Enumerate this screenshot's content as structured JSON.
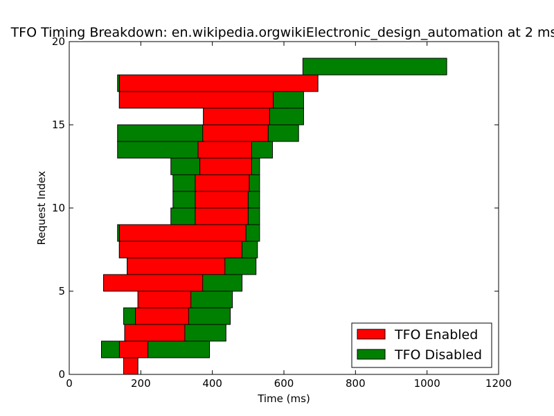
{
  "chart_data": {
    "type": "bar",
    "orientation": "horizontal",
    "layout": "overlapping",
    "title": "TFO Timing Breakdown: en.wikipedia.orgwikiElectronic_design_automation at 2 ms",
    "xlabel": "Time (ms)",
    "ylabel": "Request Index",
    "xlim": [
      0,
      1200
    ],
    "ylim": [
      0,
      20
    ],
    "xticks": [
      0,
      200,
      400,
      600,
      800,
      1000,
      1200
    ],
    "yticks": [
      0,
      5,
      10,
      15,
      20
    ],
    "grid": false,
    "legend_position": "lower-right",
    "series": [
      {
        "name": "TFO Disabled",
        "color": "#008000",
        "bars": [
          {
            "index": 1,
            "start": 90,
            "end": 392
          },
          {
            "index": 2,
            "start": 155,
            "end": 438
          },
          {
            "index": 3,
            "start": 152,
            "end": 450
          },
          {
            "index": 4,
            "start": 192,
            "end": 456
          },
          {
            "index": 5,
            "start": 96,
            "end": 483
          },
          {
            "index": 6,
            "start": 162,
            "end": 522
          },
          {
            "index": 7,
            "start": 140,
            "end": 526
          },
          {
            "index": 8,
            "start": 135,
            "end": 532
          },
          {
            "index": 9,
            "start": 284,
            "end": 532
          },
          {
            "index": 10,
            "start": 290,
            "end": 532
          },
          {
            "index": 11,
            "start": 290,
            "end": 532
          },
          {
            "index": 12,
            "start": 284,
            "end": 532
          },
          {
            "index": 13,
            "start": 135,
            "end": 568
          },
          {
            "index": 14,
            "start": 135,
            "end": 641
          },
          {
            "index": 15,
            "start": 375,
            "end": 655
          },
          {
            "index": 16,
            "start": 140,
            "end": 655
          },
          {
            "index": 17,
            "start": 135,
            "end": 695
          },
          {
            "index": 18,
            "start": 653,
            "end": 1055
          }
        ]
      },
      {
        "name": "TFO Enabled",
        "color": "#ff0000",
        "bars": [
          {
            "index": 0,
            "start": 152,
            "end": 192
          },
          {
            "index": 1,
            "start": 140,
            "end": 220
          },
          {
            "index": 2,
            "start": 155,
            "end": 323
          },
          {
            "index": 3,
            "start": 185,
            "end": 334
          },
          {
            "index": 4,
            "start": 192,
            "end": 340
          },
          {
            "index": 5,
            "start": 96,
            "end": 373
          },
          {
            "index": 6,
            "start": 162,
            "end": 435
          },
          {
            "index": 7,
            "start": 140,
            "end": 483
          },
          {
            "index": 8,
            "start": 140,
            "end": 494
          },
          {
            "index": 9,
            "start": 352,
            "end": 500
          },
          {
            "index": 10,
            "start": 352,
            "end": 500
          },
          {
            "index": 11,
            "start": 352,
            "end": 503
          },
          {
            "index": 12,
            "start": 365,
            "end": 510
          },
          {
            "index": 13,
            "start": 360,
            "end": 510
          },
          {
            "index": 14,
            "start": 373,
            "end": 556
          },
          {
            "index": 15,
            "start": 375,
            "end": 560
          },
          {
            "index": 16,
            "start": 140,
            "end": 570
          },
          {
            "index": 17,
            "start": 140,
            "end": 695
          }
        ]
      }
    ],
    "legend": [
      {
        "label": "TFO Enabled",
        "color": "#ff0000"
      },
      {
        "label": "TFO Disabled",
        "color": "#008000"
      }
    ]
  }
}
